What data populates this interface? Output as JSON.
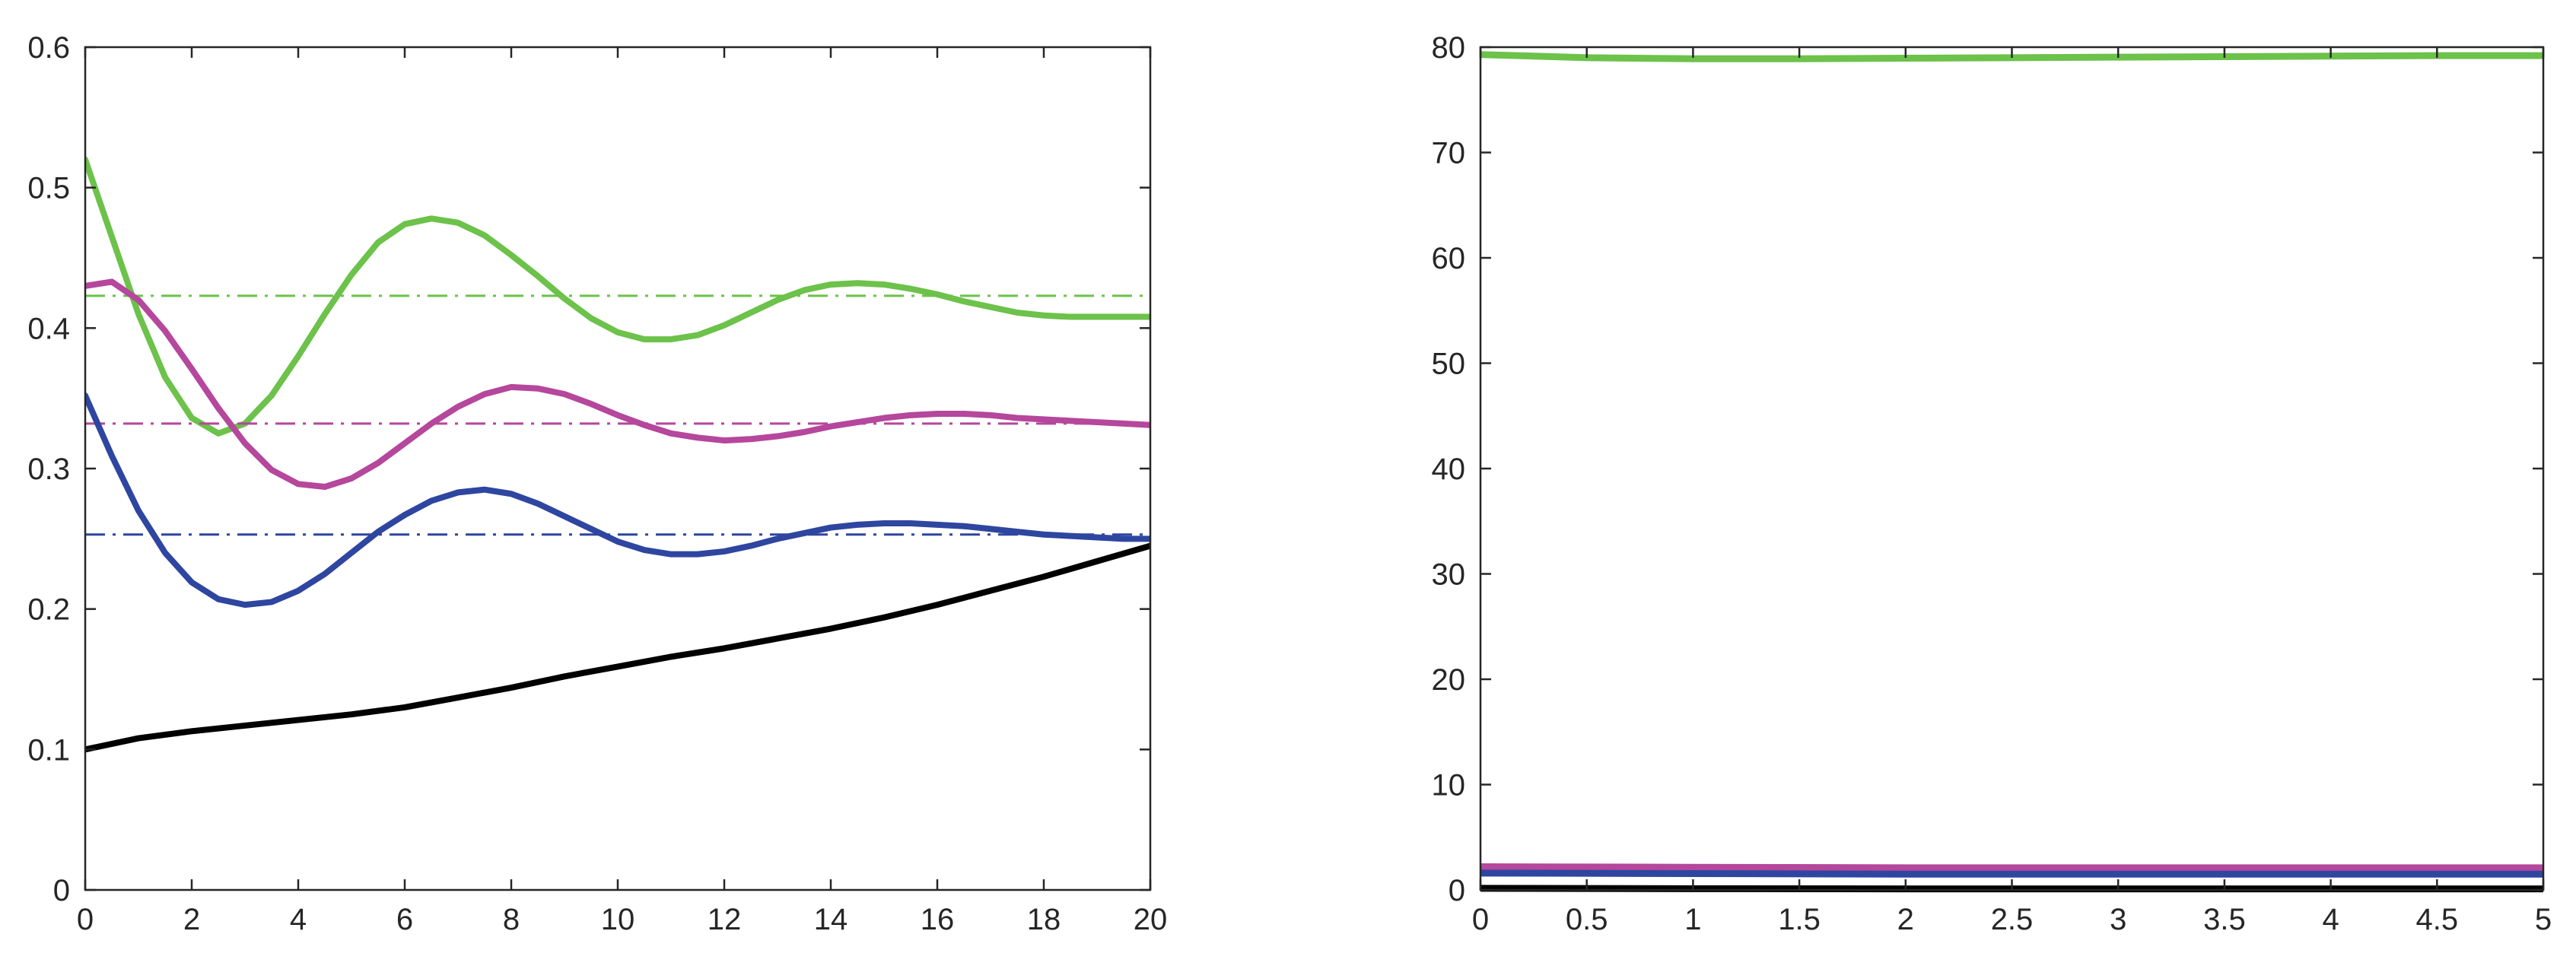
{
  "chart_data": [
    {
      "type": "line",
      "title": "",
      "xlabel": "",
      "ylabel": "",
      "xlim": [
        0,
        20
      ],
      "ylim": [
        0,
        0.6
      ],
      "xticks": [
        0,
        2,
        4,
        6,
        8,
        10,
        12,
        14,
        16,
        18,
        20
      ],
      "xtick_labels": [
        "0",
        "2",
        "4",
        "6",
        "8",
        "10",
        "12",
        "14",
        "16",
        "18",
        "20"
      ],
      "yticks": [
        0,
        0.1,
        0.2,
        0.3,
        0.4,
        0.5,
        0.6
      ],
      "ytick_labels": [
        "0",
        "0.1",
        "0.2",
        "0.3",
        "0.4",
        "0.5",
        "0.6"
      ],
      "grid": false,
      "legend": "none",
      "series": [
        {
          "color": "#6cc24a",
          "style": "solid",
          "x": [
            0,
            0.5,
            1,
            1.5,
            2,
            2.5,
            3,
            3.5,
            4,
            4.5,
            5,
            5.5,
            6,
            6.5,
            7,
            7.5,
            8,
            8.5,
            9,
            9.5,
            10,
            10.5,
            11,
            11.5,
            12,
            12.5,
            13,
            13.5,
            14,
            14.5,
            15,
            15.5,
            16,
            16.5,
            17,
            17.5,
            18,
            18.5,
            19,
            19.5,
            20
          ],
          "y": [
            0.52,
            0.465,
            0.41,
            0.365,
            0.336,
            0.325,
            0.332,
            0.352,
            0.38,
            0.41,
            0.438,
            0.461,
            0.474,
            0.478,
            0.475,
            0.466,
            0.452,
            0.437,
            0.421,
            0.407,
            0.397,
            0.392,
            0.392,
            0.395,
            0.402,
            0.411,
            0.42,
            0.427,
            0.431,
            0.432,
            0.431,
            0.428,
            0.424,
            0.419,
            0.415,
            0.411,
            0.409,
            0.408,
            0.408,
            0.408,
            0.408
          ]
        },
        {
          "color": "#6cc24a",
          "style": "dashdot",
          "x": [
            0,
            20
          ],
          "y": [
            0.423,
            0.423
          ]
        },
        {
          "color": "#b5479c",
          "style": "solid",
          "x": [
            0,
            0.5,
            1,
            1.5,
            2,
            2.5,
            3,
            3.5,
            4,
            4.5,
            5,
            5.5,
            6,
            6.5,
            7,
            7.5,
            8,
            8.5,
            9,
            9.5,
            10,
            10.5,
            11,
            11.5,
            12,
            12.5,
            13,
            13.5,
            14,
            14.5,
            15,
            15.5,
            16,
            16.5,
            17,
            17.5,
            18,
            18.5,
            19,
            19.5,
            20
          ],
          "y": [
            0.43,
            0.433,
            0.42,
            0.398,
            0.371,
            0.343,
            0.318,
            0.299,
            0.289,
            0.287,
            0.293,
            0.304,
            0.318,
            0.332,
            0.344,
            0.353,
            0.358,
            0.357,
            0.353,
            0.346,
            0.338,
            0.331,
            0.325,
            0.322,
            0.32,
            0.321,
            0.323,
            0.326,
            0.33,
            0.333,
            0.336,
            0.338,
            0.339,
            0.339,
            0.338,
            0.336,
            0.335,
            0.334,
            0.333,
            0.332,
            0.331
          ]
        },
        {
          "color": "#b5479c",
          "style": "dashdot",
          "x": [
            0,
            20
          ],
          "y": [
            0.332,
            0.332
          ]
        },
        {
          "color": "#2e46a0",
          "style": "solid",
          "x": [
            0,
            0.5,
            1,
            1.5,
            2,
            2.5,
            3,
            3.5,
            4,
            4.5,
            5,
            5.5,
            6,
            6.5,
            7,
            7.5,
            8,
            8.5,
            9,
            9.5,
            10,
            10.5,
            11,
            11.5,
            12,
            12.5,
            13,
            13.5,
            14,
            14.5,
            15,
            15.5,
            16,
            16.5,
            17,
            17.5,
            18,
            18.5,
            19,
            19.5,
            20
          ],
          "y": [
            0.352,
            0.309,
            0.27,
            0.24,
            0.219,
            0.207,
            0.203,
            0.205,
            0.213,
            0.225,
            0.24,
            0.255,
            0.267,
            0.277,
            0.283,
            0.285,
            0.282,
            0.275,
            0.266,
            0.257,
            0.248,
            0.242,
            0.239,
            0.239,
            0.241,
            0.245,
            0.25,
            0.254,
            0.258,
            0.26,
            0.261,
            0.261,
            0.26,
            0.259,
            0.257,
            0.255,
            0.253,
            0.252,
            0.251,
            0.25,
            0.25
          ]
        },
        {
          "color": "#2e46a0",
          "style": "dashdot",
          "x": [
            0,
            20
          ],
          "y": [
            0.253,
            0.253
          ]
        },
        {
          "color": "#000000",
          "style": "solid",
          "x": [
            0,
            1,
            2,
            3,
            4,
            5,
            6,
            7,
            8,
            9,
            10,
            11,
            12,
            13,
            14,
            15,
            16,
            17,
            18,
            19,
            20
          ],
          "y": [
            0.1,
            0.108,
            0.113,
            0.117,
            0.121,
            0.125,
            0.13,
            0.137,
            0.144,
            0.152,
            0.159,
            0.166,
            0.172,
            0.179,
            0.186,
            0.194,
            0.203,
            0.213,
            0.223,
            0.234,
            0.245
          ]
        }
      ]
    },
    {
      "type": "line",
      "title": "",
      "xlabel": "",
      "ylabel": "",
      "xlim": [
        0,
        5
      ],
      "ylim": [
        0,
        80
      ],
      "xticks": [
        0,
        0.5,
        1,
        1.5,
        2,
        2.5,
        3,
        3.5,
        4,
        4.5,
        5
      ],
      "xtick_labels": [
        "0",
        "0.5",
        "1",
        "1.5",
        "2",
        "2.5",
        "3",
        "3.5",
        "4",
        "4.5",
        "5"
      ],
      "yticks": [
        0,
        10,
        20,
        30,
        40,
        50,
        60,
        70,
        80
      ],
      "ytick_labels": [
        "0",
        "10",
        "20",
        "30",
        "40",
        "50",
        "60",
        "70",
        "80"
      ],
      "grid": false,
      "legend": "none",
      "series": [
        {
          "color": "#6cc24a",
          "style": "solid",
          "x": [
            0,
            0.5,
            1,
            1.5,
            2,
            2.5,
            3,
            3.5,
            4,
            4.5,
            5
          ],
          "y": [
            79.3,
            79.0,
            78.9,
            78.9,
            78.95,
            79.0,
            79.05,
            79.1,
            79.15,
            79.2,
            79.2
          ]
        },
        {
          "color": "#b5479c",
          "style": "solid",
          "x": [
            0,
            1,
            2,
            3,
            4,
            5
          ],
          "y": [
            2.2,
            2.15,
            2.1,
            2.1,
            2.1,
            2.1
          ]
        },
        {
          "color": "#2e46a0",
          "style": "solid",
          "x": [
            0,
            1,
            2,
            3,
            4,
            5
          ],
          "y": [
            1.6,
            1.55,
            1.5,
            1.5,
            1.5,
            1.5
          ]
        },
        {
          "color": "#000000",
          "style": "solid",
          "x": [
            0,
            1,
            2,
            3,
            4,
            5
          ],
          "y": [
            0.15,
            0.12,
            0.1,
            0.1,
            0.1,
            0.1
          ]
        }
      ]
    }
  ]
}
